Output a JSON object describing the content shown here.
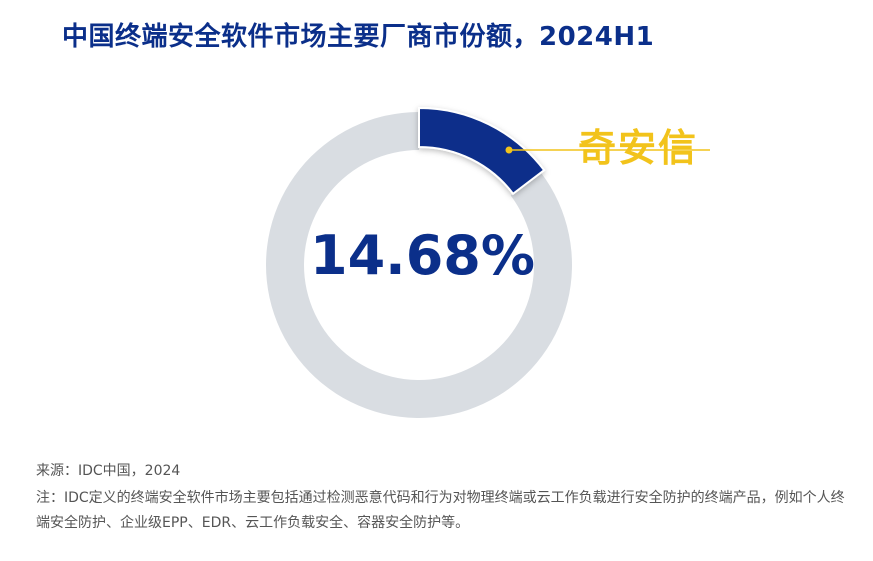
{
  "title": "中国终端安全软件市场主要厂商市份额，2024H1",
  "chart_data": {
    "type": "pie",
    "style": "donut",
    "slices": [
      {
        "label": "奇安信",
        "value": 14.68,
        "color": "#0b2f8a"
      },
      {
        "label": "",
        "value": 85.32,
        "color": "#d9dde2"
      }
    ],
    "center_label": "14.68%",
    "callout_label": "奇安信",
    "callout_color": "#f2c31b"
  },
  "source": "来源：IDC中国，2024",
  "note": "注：IDC定义的终端安全软件市场主要包括通过检测恶意代码和行为对物理终端或云工作负载进行安全防护的终端产品，例如个人终端安全防护、企业级EPP、EDR、云工作负载安全、容器安全防护等。"
}
